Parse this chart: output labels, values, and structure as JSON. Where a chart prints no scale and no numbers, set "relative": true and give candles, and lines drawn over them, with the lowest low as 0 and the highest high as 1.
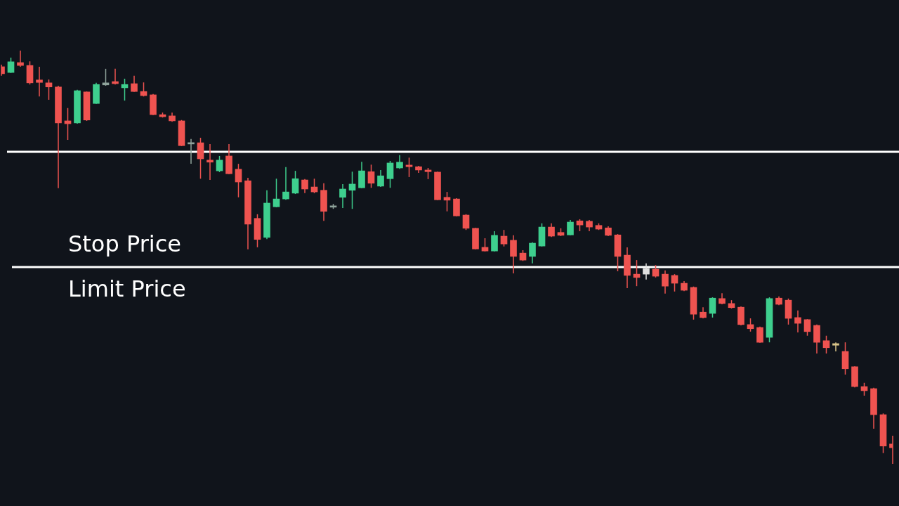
{
  "chart_data": {
    "type": "candlestick",
    "relative": true,
    "categories": [
      null,
      null,
      null,
      null,
      null,
      null,
      null,
      null,
      null,
      null,
      null,
      null,
      null,
      null,
      null,
      null,
      null,
      null,
      null,
      null,
      null,
      null,
      null,
      null,
      null,
      null,
      null,
      null,
      null,
      null,
      null,
      null,
      null,
      null,
      null,
      null,
      null,
      null,
      null,
      null,
      null,
      null,
      null,
      null,
      null,
      null,
      null,
      null,
      null,
      null,
      null,
      null,
      null,
      null,
      null,
      null,
      null,
      null,
      null,
      null,
      null,
      null,
      null,
      null,
      null,
      null,
      null,
      null,
      null,
      null,
      null,
      null,
      null,
      null,
      null,
      null,
      null,
      null,
      null,
      null,
      null,
      null,
      null,
      null,
      null,
      null,
      null,
      null,
      null,
      null,
      null,
      null,
      null,
      null,
      null
    ],
    "ohlc": [
      [
        0.961,
        0.966,
        0.939,
        0.944
      ],
      [
        0.947,
        0.983,
        0.946,
        0.973
      ],
      [
        0.971,
        1.0,
        0.961,
        0.964
      ],
      [
        0.964,
        0.974,
        0.918,
        0.922
      ],
      [
        0.929,
        0.961,
        0.889,
        0.923
      ],
      [
        0.922,
        0.93,
        0.881,
        0.912
      ],
      [
        0.912,
        0.915,
        0.667,
        0.825
      ],
      [
        0.83,
        0.861,
        0.784,
        0.823
      ],
      [
        0.825,
        0.905,
        0.823,
        0.903
      ],
      [
        0.9,
        0.901,
        0.83,
        0.832
      ],
      [
        0.872,
        0.922,
        0.871,
        0.918
      ],
      [
        0.917,
        0.956,
        0.915,
        0.922
      ],
      [
        0.925,
        0.956,
        0.918,
        0.92
      ],
      [
        0.91,
        0.932,
        0.879,
        0.918
      ],
      [
        0.92,
        0.939,
        0.9,
        0.901
      ],
      [
        0.901,
        0.923,
        0.889,
        0.891
      ],
      [
        0.893,
        0.895,
        0.844,
        0.845
      ],
      [
        0.845,
        0.85,
        0.838,
        0.84
      ],
      [
        0.842,
        0.85,
        0.828,
        0.83
      ],
      [
        0.83,
        0.832,
        0.769,
        0.77
      ],
      [
        0.774,
        0.786,
        0.726,
        0.777
      ],
      [
        0.777,
        0.789,
        0.69,
        0.738
      ],
      [
        0.735,
        0.774,
        0.687,
        0.73
      ],
      [
        0.709,
        0.745,
        0.706,
        0.735
      ],
      [
        0.745,
        0.774,
        0.701,
        0.702
      ],
      [
        0.713,
        0.726,
        0.645,
        0.682
      ],
      [
        0.685,
        0.692,
        0.519,
        0.58
      ],
      [
        0.594,
        0.604,
        0.524,
        0.543
      ],
      [
        0.548,
        0.662,
        0.544,
        0.631
      ],
      [
        0.622,
        0.69,
        0.621,
        0.641
      ],
      [
        0.641,
        0.718,
        0.639,
        0.658
      ],
      [
        0.655,
        0.709,
        0.653,
        0.69
      ],
      [
        0.687,
        0.689,
        0.655,
        0.665
      ],
      [
        0.67,
        0.69,
        0.655,
        0.658
      ],
      [
        0.662,
        0.679,
        0.588,
        0.611
      ],
      [
        0.621,
        0.629,
        0.617,
        0.622
      ],
      [
        0.645,
        0.677,
        0.619,
        0.665
      ],
      [
        0.662,
        0.707,
        0.617,
        0.677
      ],
      [
        0.668,
        0.731,
        0.667,
        0.709
      ],
      [
        0.707,
        0.724,
        0.668,
        0.679
      ],
      [
        0.672,
        0.711,
        0.67,
        0.697
      ],
      [
        0.69,
        0.733,
        0.668,
        0.728
      ],
      [
        0.716,
        0.747,
        0.714,
        0.73
      ],
      [
        0.723,
        0.741,
        0.694,
        0.719
      ],
      [
        0.719,
        0.721,
        0.704,
        0.711
      ],
      [
        0.711,
        0.716,
        0.689,
        0.707
      ],
      [
        0.706,
        0.707,
        0.638,
        0.639
      ],
      [
        0.645,
        0.658,
        0.611,
        0.638
      ],
      [
        0.641,
        0.643,
        0.599,
        0.6
      ],
      [
        0.602,
        0.604,
        0.566,
        0.57
      ],
      [
        0.57,
        0.571,
        0.519,
        0.52
      ],
      [
        0.524,
        0.546,
        0.514,
        0.515
      ],
      [
        0.515,
        0.563,
        0.514,
        0.553
      ],
      [
        0.551,
        0.566,
        0.526,
        0.532
      ],
      [
        0.541,
        0.553,
        0.461,
        0.502
      ],
      [
        0.51,
        0.517,
        0.491,
        0.493
      ],
      [
        0.502,
        0.536,
        0.485,
        0.534
      ],
      [
        0.527,
        0.582,
        0.526,
        0.573
      ],
      [
        0.573,
        0.582,
        0.549,
        0.551
      ],
      [
        0.56,
        0.57,
        0.551,
        0.553
      ],
      [
        0.554,
        0.59,
        0.553,
        0.585
      ],
      [
        0.588,
        0.592,
        0.563,
        0.578
      ],
      [
        0.587,
        0.59,
        0.563,
        0.573
      ],
      [
        0.577,
        0.582,
        0.566,
        0.568
      ],
      [
        0.571,
        0.575,
        0.551,
        0.553
      ],
      [
        0.554,
        0.556,
        0.466,
        0.502
      ],
      [
        0.505,
        0.524,
        0.425,
        0.456
      ],
      [
        0.459,
        0.493,
        0.43,
        0.451
      ],
      [
        0.473,
        0.485,
        0.446,
        0.459
      ],
      [
        0.471,
        0.481,
        0.451,
        0.454
      ],
      [
        0.459,
        0.468,
        0.412,
        0.43
      ],
      [
        0.456,
        0.459,
        0.417,
        0.437
      ],
      [
        0.437,
        0.442,
        0.418,
        0.42
      ],
      [
        0.427,
        0.429,
        0.349,
        0.362
      ],
      [
        0.367,
        0.379,
        0.352,
        0.354
      ],
      [
        0.364,
        0.403,
        0.354,
        0.401
      ],
      [
        0.4,
        0.413,
        0.386,
        0.388
      ],
      [
        0.388,
        0.396,
        0.376,
        0.378
      ],
      [
        0.379,
        0.381,
        0.335,
        0.337
      ],
      [
        0.337,
        0.352,
        0.32,
        0.327
      ],
      [
        0.33,
        0.332,
        0.293,
        0.294
      ],
      [
        0.306,
        0.403,
        0.294,
        0.4
      ],
      [
        0.401,
        0.405,
        0.384,
        0.386
      ],
      [
        0.396,
        0.4,
        0.337,
        0.352
      ],
      [
        0.354,
        0.371,
        0.318,
        0.34
      ],
      [
        0.349,
        0.35,
        0.31,
        0.32
      ],
      [
        0.335,
        0.337,
        0.267,
        0.294
      ],
      [
        0.298,
        0.31,
        0.267,
        0.281
      ],
      [
        0.291,
        0.294,
        0.272,
        0.287
      ],
      [
        0.272,
        0.294,
        0.216,
        0.23
      ],
      [
        0.235,
        0.236,
        0.185,
        0.187
      ],
      [
        0.187,
        0.196,
        0.165,
        0.177
      ],
      [
        0.182,
        0.184,
        0.085,
        0.119
      ],
      [
        0.119,
        0.122,
        0.026,
        0.043
      ],
      [
        0.048,
        0.068,
        0.0,
        0.039
      ]
    ],
    "colors": [
      "#ef5350",
      "#3ecf8e",
      "#ef5350",
      "#ef5350",
      "#ef5350",
      "#ef5350",
      "#ef5350",
      "#ef5350",
      "#3ecf8e",
      "#ef5350",
      "#3ecf8e",
      "#8fa39b",
      "#ef5350",
      "#3ecf8e",
      "#ef5350",
      "#ef5350",
      "#ef5350",
      "#ef5350",
      "#ef5350",
      "#ef5350",
      "#8fa39b",
      "#ef5350",
      "#ef5350",
      "#3ecf8e",
      "#ef5350",
      "#ef5350",
      "#ef5350",
      "#ef5350",
      "#3ecf8e",
      "#3ecf8e",
      "#3ecf8e",
      "#3ecf8e",
      "#ef5350",
      "#ef5350",
      "#ef5350",
      "#8fa39b",
      "#3ecf8e",
      "#3ecf8e",
      "#3ecf8e",
      "#ef5350",
      "#3ecf8e",
      "#3ecf8e",
      "#3ecf8e",
      "#ef5350",
      "#ef5350",
      "#ef5350",
      "#ef5350",
      "#ef5350",
      "#ef5350",
      "#ef5350",
      "#ef5350",
      "#ef5350",
      "#3ecf8e",
      "#ef5350",
      "#ef5350",
      "#ef5350",
      "#3ecf8e",
      "#3ecf8e",
      "#ef5350",
      "#ef5350",
      "#3ecf8e",
      "#ef5350",
      "#ef5350",
      "#ef5350",
      "#ef5350",
      "#ef5350",
      "#ef5350",
      "#ef5350",
      "#e0e0e0",
      "#ef5350",
      "#ef5350",
      "#ef5350",
      "#ef5350",
      "#ef5350",
      "#ef5350",
      "#3ecf8e",
      "#ef5350",
      "#ef5350",
      "#ef5350",
      "#ef5350",
      "#ef5350",
      "#3ecf8e",
      "#ef5350",
      "#ef5350",
      "#ef5350",
      "#ef5350",
      "#ef5350",
      "#ef5350",
      "#d8c48a",
      "#ef5350",
      "#ef5350",
      "#ef5350",
      "#ef5350",
      "#ef5350",
      "#ef5350"
    ],
    "ref_lines": [
      {
        "axis": "y",
        "value": 0.755,
        "color": "#ffffff"
      },
      {
        "axis": "y",
        "value": 0.476,
        "label": "Stop Price",
        "color": "#ffffff"
      }
    ],
    "annotations": [
      {
        "text": "Limit Price",
        "y": 0.476
      }
    ]
  }
}
